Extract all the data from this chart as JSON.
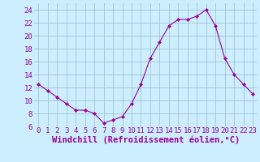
{
  "x": [
    0,
    1,
    2,
    3,
    4,
    5,
    6,
    7,
    8,
    9,
    10,
    11,
    12,
    13,
    14,
    15,
    16,
    17,
    18,
    19,
    20,
    21,
    22,
    23
  ],
  "y": [
    12.5,
    11.5,
    10.5,
    9.5,
    8.5,
    8.5,
    8.0,
    6.5,
    7.0,
    7.5,
    9.5,
    12.5,
    16.5,
    19.0,
    21.5,
    22.5,
    22.5,
    23.0,
    24.0,
    21.5,
    16.5,
    14.0,
    12.5,
    11.0
  ],
  "line_color": "#990099",
  "marker": "D",
  "marker_size": 2,
  "background_color": "#cceeff",
  "grid_color": "#99bbcc",
  "xlabel": "Windchill (Refroidissement éolien,°C)",
  "xlim_min": -0.5,
  "xlim_max": 23.5,
  "ylim_min": 6,
  "ylim_max": 25,
  "yticks": [
    6,
    8,
    10,
    12,
    14,
    16,
    18,
    20,
    22,
    24
  ],
  "xticks": [
    0,
    1,
    2,
    3,
    4,
    5,
    6,
    7,
    8,
    9,
    10,
    11,
    12,
    13,
    14,
    15,
    16,
    17,
    18,
    19,
    20,
    21,
    22,
    23
  ],
  "tick_label_color": "#990099",
  "tick_label_fontsize": 6.5,
  "xlabel_fontsize": 7.5,
  "xlabel_color": "#990099"
}
